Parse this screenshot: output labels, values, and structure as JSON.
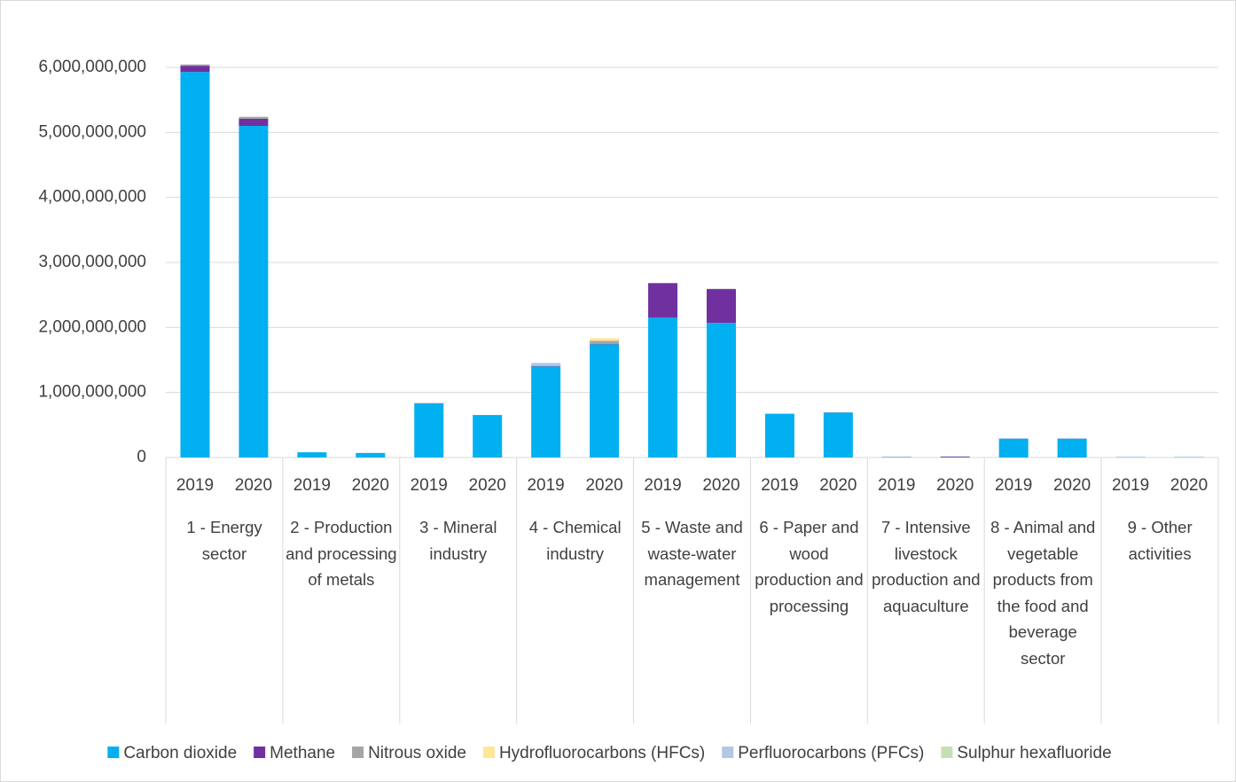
{
  "chart_data": {
    "type": "stacked_bar",
    "categories": [
      "2019",
      "2020",
      "2019",
      "2020",
      "2019",
      "2020",
      "2019",
      "2020",
      "2019",
      "2020",
      "2019",
      "2020",
      "2019",
      "2020",
      "2019",
      "2020",
      "2019",
      "2020"
    ],
    "groups": [
      "1 - Energy sector",
      "2 - Production and processing of metals",
      "3 - Mineral industry",
      "4 - Chemical industry",
      "5 - Waste and waste-water management",
      "6 - Paper and wood production and processing",
      "7 - Intensive livestock production and aquaculture",
      "8 - Animal and vegetable products from the food and beverage sector",
      "9 - Other activities"
    ],
    "series": [
      {
        "name": "Carbon dioxide",
        "color": "#00b0f0",
        "values": [
          5930000000,
          5100000000,
          80000000,
          70000000,
          830000000,
          650000000,
          1400000000,
          1740000000,
          2150000000,
          2070000000,
          670000000,
          690000000,
          5000000,
          5000000,
          290000000,
          290000000,
          5000000,
          5000000
        ]
      },
      {
        "name": "Methane",
        "color": "#7030a0",
        "values": [
          95000000,
          110000000,
          0,
          0,
          5000000,
          3000000,
          5000000,
          5000000,
          530000000,
          520000000,
          3000000,
          3000000,
          3000000,
          10000000,
          2000000,
          2000000,
          1000000,
          1000000
        ]
      },
      {
        "name": "Nitrous oxide",
        "color": "#a5a5a5",
        "values": [
          20000000,
          30000000,
          0,
          0,
          0,
          0,
          10000000,
          50000000,
          5000000,
          5000000,
          2000000,
          2000000,
          1000000,
          1000000,
          1000000,
          1000000,
          0,
          0
        ]
      },
      {
        "name": "Hydrofluorocarbons (HFCs)",
        "color": "#ffe699",
        "values": [
          0,
          0,
          0,
          0,
          0,
          0,
          0,
          40000000,
          0,
          0,
          0,
          0,
          0,
          0,
          0,
          0,
          0,
          0
        ]
      },
      {
        "name": "Perfluorocarbons (PFCs)",
        "color": "#b4c7e7",
        "values": [
          0,
          0,
          0,
          0,
          0,
          0,
          40000000,
          0,
          0,
          0,
          0,
          0,
          0,
          0,
          0,
          0,
          0,
          0
        ]
      },
      {
        "name": "Sulphur hexafluoride",
        "color": "#c5e0b4",
        "values": [
          0,
          0,
          0,
          0,
          0,
          0,
          0,
          0,
          0,
          0,
          0,
          0,
          0,
          0,
          0,
          0,
          0,
          0
        ]
      }
    ],
    "ylim": [
      0,
      6000000000
    ],
    "yticks": [
      0,
      {
        "value": 1000000000,
        "label": "1,000,000,000"
      },
      {
        "value": 2000000000,
        "label": "2,000,000,000"
      },
      {
        "value": 3000000000,
        "label": "3,000,000,000"
      },
      {
        "value": 4000000000,
        "label": "4,000,000,000"
      },
      {
        "value": 5000000000,
        "label": "5,000,000,000"
      },
      {
        "value": 6000000000,
        "label": "6,000,000,000"
      }
    ],
    "grid": true,
    "legend": "bottom"
  }
}
